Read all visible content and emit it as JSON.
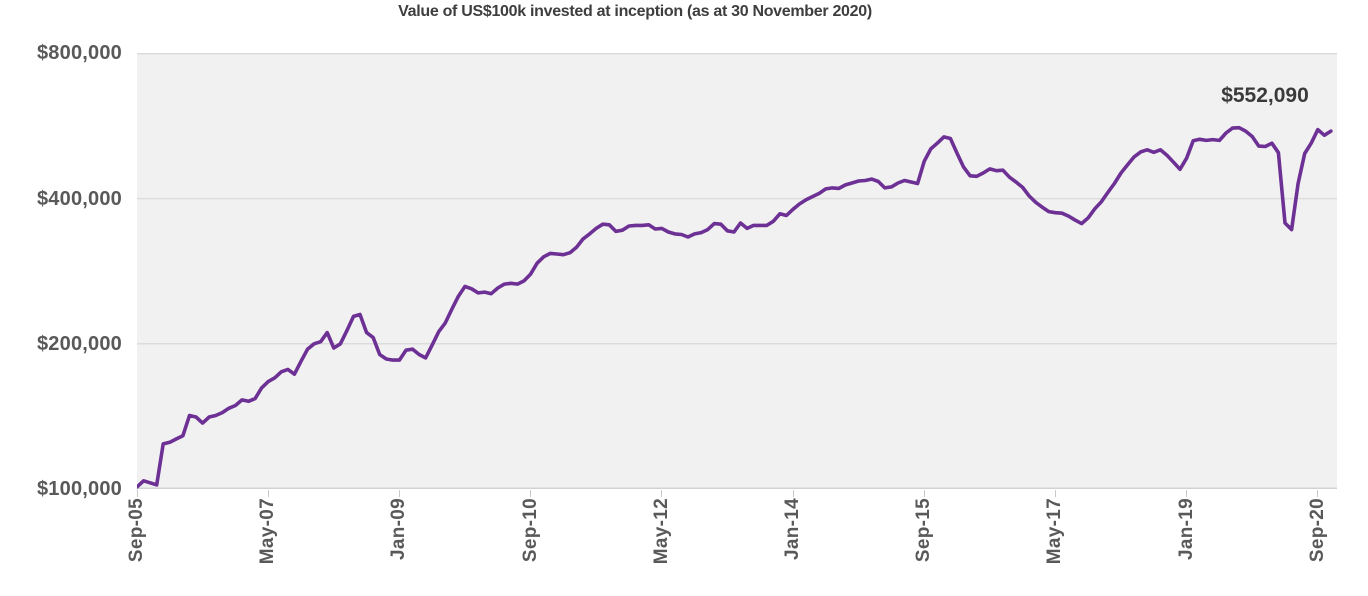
{
  "title": "Value of US$100k invested at inception (as at 30 November 2020)",
  "annotation": {
    "end_label": "$552,090"
  },
  "colors": {
    "line": "#6d3094",
    "plot_bg": "#f1f1f1",
    "grid": "#dcdcdc",
    "axis": "#d2d2d2",
    "tick": "#c9c9c9",
    "label": "#595959",
    "title": "#3e3e3e",
    "annotation": "#3a3a3a"
  },
  "y_axis": {
    "labels": [
      "$800,000",
      "$400,000",
      "$200,000",
      "$100,000"
    ],
    "values": [
      800000,
      400000,
      200000,
      100000
    ],
    "scale": "log2"
  },
  "x_axis": {
    "labels": [
      "Sep-05",
      "May-07",
      "Jan-09",
      "Sep-10",
      "May-12",
      "Jan-14",
      "Sep-15",
      "May-17",
      "Jan-19",
      "Sep-20"
    ],
    "tick_month_indices": [
      0,
      20,
      40,
      60,
      80,
      100,
      120,
      140,
      160,
      180
    ]
  },
  "chart_data": {
    "type": "line",
    "title": "Value of US$100k invested at inception (as at 30 November 2020)",
    "x_start": "Sep-2005",
    "x_end": "Nov-2020",
    "frequency": "monthly",
    "y_scale": "log",
    "ylim": [
      100000,
      800000
    ],
    "y_ticks": [
      100000,
      200000,
      400000,
      800000
    ],
    "x_tick_labels": [
      "Sep-05",
      "May-07",
      "Jan-09",
      "Sep-10",
      "May-12",
      "Jan-14",
      "Sep-15",
      "May-17",
      "Jan-19",
      "Sep-20"
    ],
    "grid": true,
    "legend": false,
    "end_value": 552090,
    "end_value_label": "$552,090",
    "series": [
      {
        "name": "Value of US$100k invested at inception",
        "values": [
          101000,
          104000,
          103000,
          102000,
          124000,
          125000,
          127000,
          129000,
          142000,
          141000,
          137000,
          141000,
          142000,
          144000,
          147000,
          149000,
          153000,
          152000,
          154000,
          162000,
          167000,
          170000,
          175000,
          177000,
          173000,
          184000,
          195000,
          200000,
          202000,
          211000,
          196000,
          200000,
          213000,
          228000,
          230000,
          211000,
          206000,
          190000,
          186000,
          185000,
          185000,
          194000,
          195000,
          190000,
          187000,
          199000,
          212000,
          221000,
          236000,
          251000,
          263000,
          260000,
          255000,
          256000,
          254000,
          261000,
          266000,
          267000,
          266000,
          270000,
          279000,
          294000,
          303000,
          308000,
          307000,
          306000,
          309000,
          317000,
          330000,
          338000,
          347000,
          354000,
          353000,
          342000,
          344000,
          351000,
          352000,
          352000,
          353000,
          346000,
          347000,
          341000,
          338000,
          337000,
          333000,
          338000,
          340000,
          345000,
          355000,
          354000,
          343000,
          341000,
          356000,
          347000,
          352000,
          352000,
          352000,
          359000,
          372000,
          369000,
          380000,
          390000,
          398000,
          404000,
          410000,
          419000,
          421000,
          420000,
          427000,
          431000,
          435000,
          436000,
          439000,
          434000,
          421000,
          423000,
          431000,
          436000,
          433000,
          430000,
          478000,
          507000,
          521000,
          537000,
          533000,
          497000,
          465000,
          446000,
          445000,
          452000,
          461000,
          457000,
          458000,
          443000,
          433000,
          422000,
          405000,
          393000,
          384000,
          376000,
          374000,
          373000,
          368000,
          361000,
          355000,
          365000,
          381000,
          394000,
          412000,
          430000,
          452000,
          470000,
          488000,
          500000,
          505000,
          499000,
          505000,
          492000,
          476000,
          460000,
          485000,
          527000,
          531000,
          528000,
          530000,
          528000,
          547000,
          560000,
          561000,
          552000,
          538000,
          514000,
          513000,
          521000,
          498000,
          356000,
          345000,
          430000,
          496000,
          521000,
          556000,
          541000,
          552090
        ]
      }
    ]
  }
}
